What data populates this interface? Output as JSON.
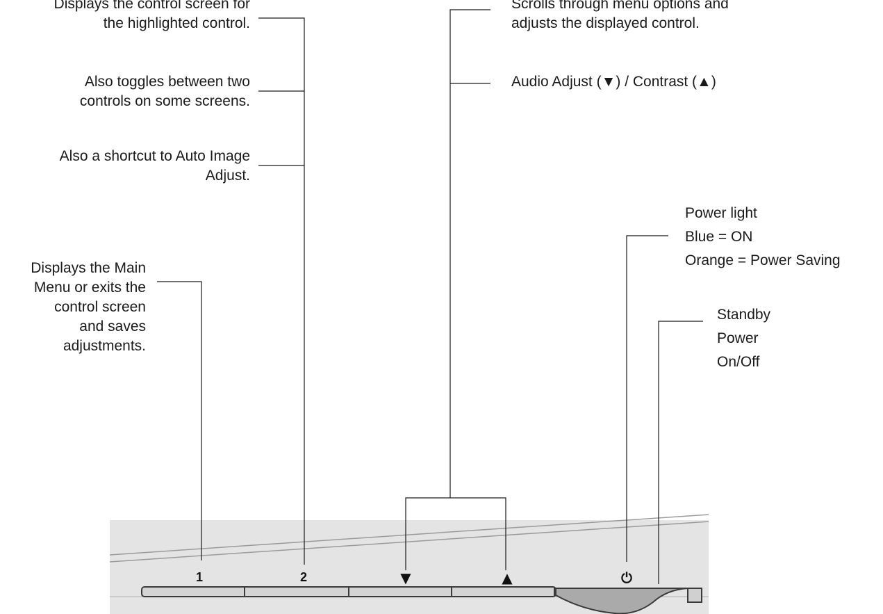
{
  "callouts": {
    "control_screen": [
      "Displays the control screen for",
      "the highlighted control."
    ],
    "toggle": [
      "Also toggles between two",
      "controls on some screens."
    ],
    "auto_adjust": [
      "Also a shortcut to Auto Image",
      "Adjust."
    ],
    "main_menu": [
      "Displays the Main",
      "Menu or exits the",
      "control screen",
      "and saves",
      "adjustments."
    ],
    "scroll": [
      "Scrolls through menu options and",
      "adjusts the displayed control."
    ],
    "audio_contrast": "Audio Adjust (▼) / Contrast  (▲)",
    "power_light": [
      "Power light",
      "Blue = ON",
      "Orange = Power Saving"
    ],
    "standby": [
      "Standby",
      "Power",
      "On/Off"
    ]
  },
  "buttons": {
    "button1": "1",
    "button2": "2",
    "down": "▼",
    "up": "▲",
    "power": "⏻"
  },
  "colors": {
    "panel": "#e4e4e4",
    "button_strip": "#d4d4d4",
    "leader_line": "#1a1a1a"
  }
}
